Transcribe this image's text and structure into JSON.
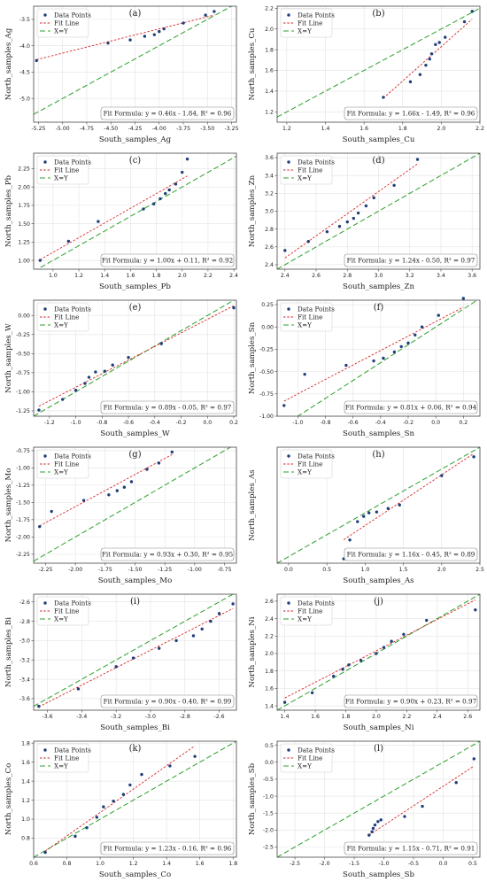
{
  "figure": {
    "legend": {
      "points": "Data Points",
      "fit": "Fit Line",
      "identity": "X=Y"
    },
    "colors": {
      "points": "#1f3f7a",
      "fit": "#d62728",
      "identity": "#2ca02c",
      "grid": "#e3e3e3",
      "axes": "#444444"
    }
  },
  "chart_data": [
    {
      "type": "scatter",
      "panel_label": "(a)",
      "xlabel": "South_samples_Ag",
      "ylabel": "North_samples_Ag",
      "xlim": [
        -5.3,
        -3.2
      ],
      "ylim": [
        -5.45,
        -3.25
      ],
      "xticks": [
        -5.25,
        -5.0,
        -4.75,
        -4.5,
        -4.25,
        -4.0,
        -3.75,
        -3.5,
        -3.25
      ],
      "xtick_labels": [
        "-5.25",
        "-5.00",
        "-4.75",
        "-4.50",
        "-4.25",
        "-4.00",
        "-3.75",
        "-3.50",
        "-3.25"
      ],
      "yticks": [
        -5.0,
        -4.5,
        -4.0,
        -3.5
      ],
      "ytick_labels": [
        "-5.0",
        "-4.5",
        "-4.0",
        "-3.5"
      ],
      "x": [
        -5.27,
        -4.53,
        -4.3,
        -4.15,
        -4.05,
        -4.0,
        -3.95,
        -3.75,
        -3.52,
        -3.43
      ],
      "y": [
        -4.28,
        -3.95,
        -3.89,
        -3.82,
        -3.79,
        -3.73,
        -3.68,
        -3.57,
        -3.42,
        -3.35
      ],
      "fit": {
        "slope": 0.46,
        "intercept": -1.84
      },
      "fit_formula": "Fit Formula: y = 0.46x - 1.84, R² = 0.96",
      "legend_position": "top-left",
      "fit_box_position": "bottom-right",
      "grid": true
    },
    {
      "type": "scatter",
      "panel_label": "(b)",
      "xlabel": "South_samples_Cu",
      "ylabel": "North_samples_Cu",
      "xlim": [
        1.15,
        2.2
      ],
      "ylim": [
        1.1,
        2.22
      ],
      "xticks": [
        1.2,
        1.4,
        1.6,
        1.8,
        2.0,
        2.2
      ],
      "xtick_labels": [
        "1.2",
        "1.4",
        "1.6",
        "1.8",
        "2.0",
        "2.2"
      ],
      "yticks": [
        1.2,
        1.4,
        1.6,
        1.8,
        2.0,
        2.2
      ],
      "ytick_labels": [
        "1.2",
        "1.4",
        "1.6",
        "1.8",
        "2.0",
        "2.2"
      ],
      "x": [
        1.7,
        1.84,
        1.89,
        1.92,
        1.94,
        1.95,
        1.97,
        1.99,
        2.02,
        2.12,
        2.16
      ],
      "y": [
        1.34,
        1.49,
        1.56,
        1.65,
        1.71,
        1.76,
        1.85,
        1.87,
        1.92,
        2.07,
        2.17
      ],
      "fit": {
        "slope": 1.66,
        "intercept": -1.49
      },
      "fit_formula": "Fit Formula: y = 1.66x - 1.49, R² = 0.96",
      "legend_position": "top-left",
      "fit_box_position": "bottom-right",
      "grid": true
    },
    {
      "type": "scatter",
      "panel_label": "(c)",
      "xlabel": "South_samples_Pb",
      "ylabel": "North_samples_Pb",
      "xlim": [
        0.85,
        2.42
      ],
      "ylim": [
        0.88,
        2.46
      ],
      "xticks": [
        1.0,
        1.2,
        1.4,
        1.6,
        1.8,
        2.0,
        2.2,
        2.4
      ],
      "xtick_labels": [
        "1.0",
        "1.2",
        "1.4",
        "1.6",
        "1.8",
        "2.0",
        "2.2",
        "2.4"
      ],
      "yticks": [
        1.0,
        1.25,
        1.5,
        1.75,
        2.0,
        2.25
      ],
      "ytick_labels": [
        "1.00",
        "1.25",
        "1.50",
        "1.75",
        "2.00",
        "2.25"
      ],
      "x": [
        0.9,
        1.12,
        1.35,
        1.7,
        1.78,
        1.83,
        1.87,
        1.9,
        1.95,
        2.0,
        2.04
      ],
      "y": [
        1.0,
        1.26,
        1.53,
        1.7,
        1.77,
        1.84,
        1.91,
        1.96,
        2.04,
        2.2,
        2.38
      ],
      "fit": {
        "slope": 1.0,
        "intercept": 0.11
      },
      "fit_formula": "Fit Formula: y = 1.00x + 0.11, R² = 0.92",
      "legend_position": "top-left",
      "fit_box_position": "bottom-right",
      "grid": true
    },
    {
      "type": "scatter",
      "panel_label": "(d)",
      "xlabel": "South_samples_Zn",
      "ylabel": "North_samples_Zn",
      "xlim": [
        2.35,
        3.65
      ],
      "ylim": [
        2.35,
        3.65
      ],
      "xticks": [
        2.4,
        2.6,
        2.8,
        3.0,
        3.2,
        3.4,
        3.6
      ],
      "xtick_labels": [
        "2.4",
        "2.6",
        "2.8",
        "3.0",
        "3.2",
        "3.4",
        "3.6"
      ],
      "yticks": [
        2.4,
        2.6,
        2.8,
        3.0,
        3.2,
        3.4,
        3.6
      ],
      "ytick_labels": [
        "2.4",
        "2.6",
        "2.8",
        "3.0",
        "3.2",
        "3.4",
        "3.6"
      ],
      "x": [
        2.4,
        2.55,
        2.67,
        2.75,
        2.8,
        2.84,
        2.87,
        2.92,
        2.97,
        3.1,
        3.25
      ],
      "y": [
        2.56,
        2.66,
        2.77,
        2.83,
        2.88,
        2.92,
        2.98,
        3.06,
        3.15,
        3.29,
        3.58
      ],
      "fit": {
        "slope": 1.24,
        "intercept": -0.5
      },
      "fit_formula": "Fit Formula: y = 1.24x - 0.50, R² = 0.97",
      "legend_position": "top-left",
      "fit_box_position": "bottom-right",
      "grid": true
    },
    {
      "type": "scatter",
      "panel_label": "(e)",
      "xlabel": "South_samples_W",
      "ylabel": "North_samples_W",
      "xlim": [
        -1.32,
        0.22
      ],
      "ylim": [
        -1.32,
        0.2
      ],
      "xticks": [
        -1.2,
        -1.0,
        -0.8,
        -0.6,
        -0.4,
        -0.2,
        0.0,
        0.2
      ],
      "xtick_labels": [
        "-1.2",
        "-1.0",
        "-0.8",
        "-0.6",
        "-0.4",
        "-0.2",
        "0.0",
        "0.2"
      ],
      "yticks": [
        -1.25,
        -1.0,
        -0.75,
        -0.5,
        -0.25,
        0.0
      ],
      "ytick_labels": [
        "-1.25",
        "-1.00",
        "-0.75",
        "-0.50",
        "-0.25",
        "0.00"
      ],
      "x": [
        -1.28,
        -1.1,
        -1.0,
        -0.93,
        -0.9,
        -0.85,
        -0.78,
        -0.72,
        -0.6,
        -0.35,
        0.2
      ],
      "y": [
        -1.24,
        -1.1,
        -0.98,
        -0.89,
        -0.81,
        -0.74,
        -0.73,
        -0.65,
        -0.55,
        -0.37,
        0.1
      ],
      "fit": {
        "slope": 0.89,
        "intercept": -0.05
      },
      "fit_formula": "Fit Formula: y = 0.89x - 0.05, R² = 0.97",
      "legend_position": "top-left",
      "fit_box_position": "bottom-right",
      "grid": true
    },
    {
      "type": "scatter",
      "panel_label": "(f)",
      "xlabel": "South_samples_Sn",
      "ylabel": "North_samples_Sn",
      "xlim": [
        -1.15,
        0.32
      ],
      "ylim": [
        -1.0,
        0.3
      ],
      "xticks": [
        -1.0,
        -0.8,
        -0.6,
        -0.4,
        -0.2,
        0.0,
        0.2
      ],
      "xtick_labels": [
        "-1.0",
        "-0.8",
        "-0.6",
        "-0.4",
        "-0.2",
        "0.0",
        "0.2"
      ],
      "yticks": [
        -1.0,
        -0.75,
        -0.5,
        -0.25,
        0.0,
        0.25
      ],
      "ytick_labels": [
        "-1.00",
        "-0.75",
        "-0.50",
        "-0.25",
        "0.00",
        "0.25"
      ],
      "x": [
        -1.1,
        -0.95,
        -0.65,
        -0.45,
        -0.38,
        -0.3,
        -0.25,
        -0.2,
        -0.15,
        -0.1,
        0.02,
        0.2
      ],
      "y": [
        -0.88,
        -0.53,
        -0.43,
        -0.38,
        -0.35,
        -0.28,
        -0.22,
        -0.18,
        -0.09,
        0.0,
        0.13,
        0.32
      ],
      "fit": {
        "slope": 0.81,
        "intercept": 0.06
      },
      "fit_formula": "Fit Formula: y = 0.81x + 0.06, R² = 0.94",
      "legend_position": "top-left",
      "fit_box_position": "bottom-right",
      "grid": true
    },
    {
      "type": "scatter",
      "panel_label": "(g)",
      "xlabel": "South_samples_Mo",
      "ylabel": "North_samples_Mo",
      "xlim": [
        -2.35,
        -0.65
      ],
      "ylim": [
        -2.38,
        -0.7
      ],
      "xticks": [
        -2.25,
        -2.0,
        -1.75,
        -1.5,
        -1.25,
        -1.0,
        -0.75
      ],
      "xtick_labels": [
        "-2.25",
        "-2.00",
        "-1.75",
        "-1.50",
        "-1.25",
        "-1.00",
        "-0.75"
      ],
      "yticks": [
        -2.25,
        -2.0,
        -1.75,
        -1.5,
        -1.25,
        -1.0,
        -0.75
      ],
      "ytick_labels": [
        "-2.25",
        "-2.00",
        "-1.75",
        "-1.50",
        "-1.25",
        "-1.00",
        "-0.75"
      ],
      "x": [
        -2.3,
        -2.2,
        -1.93,
        -1.72,
        -1.65,
        -1.59,
        -1.53,
        -1.4,
        -1.3,
        -1.19
      ],
      "y": [
        -1.85,
        -1.63,
        -1.47,
        -1.39,
        -1.33,
        -1.28,
        -1.2,
        -1.02,
        -0.93,
        -0.77
      ],
      "fit": {
        "slope": 0.93,
        "intercept": 0.3
      },
      "fit_formula": "Fit Formula: y = 0.93x + 0.30, R² = 0.95",
      "legend_position": "top-left",
      "fit_box_position": "bottom-right",
      "grid": true
    },
    {
      "type": "scatter",
      "panel_label": "(h)",
      "xlabel": "South_samples_As",
      "ylabel": "North_samples_As",
      "xlim": [
        -0.15,
        2.5
      ],
      "ylim": [
        -0.15,
        2.5
      ],
      "xticks": [
        0.0,
        0.5,
        1.0,
        1.5,
        2.0,
        2.5
      ],
      "xtick_labels": [
        "0.0",
        "0.5",
        "1.0",
        "1.5",
        "2.0",
        "2.5"
      ],
      "yticks": [],
      "ytick_labels": [],
      "x": [
        0.72,
        0.8,
        0.9,
        0.98,
        1.05,
        1.15,
        1.3,
        1.45,
        2.0,
        2.42
      ],
      "y": [
        -0.05,
        0.38,
        0.8,
        0.92,
        1.0,
        1.02,
        1.1,
        1.18,
        1.85,
        2.28
      ],
      "fit": {
        "slope": 1.16,
        "intercept": -0.45
      },
      "fit_formula": "Fit Formula: y = 1.16x - 0.45, R² = 0.89",
      "legend_position": "top-left",
      "fit_box_position": "bottom-right",
      "grid": true
    },
    {
      "type": "scatter",
      "panel_label": "(i)",
      "xlabel": "South_samples_Bi",
      "ylabel": "North_samples_Bi",
      "xlim": [
        -3.68,
        -2.5
      ],
      "ylim": [
        -3.72,
        -2.52
      ],
      "xticks": [
        -3.6,
        -3.4,
        -3.2,
        -3.0,
        -2.8,
        -2.6
      ],
      "xtick_labels": [
        "-3.6",
        "-3.4",
        "-3.2",
        "-3.0",
        "-2.8",
        "-2.6"
      ],
      "yticks": [
        -3.6,
        -3.4,
        -3.2,
        -3.0,
        -2.8,
        -2.6
      ],
      "ytick_labels": [
        "-3.6",
        "-3.4",
        "-3.2",
        "-3.0",
        "-2.8",
        "-2.6"
      ],
      "x": [
        -3.65,
        -3.42,
        -3.2,
        -3.1,
        -2.95,
        -2.85,
        -2.75,
        -2.7,
        -2.65,
        -2.6,
        -2.52
      ],
      "y": [
        -3.68,
        -3.5,
        -3.27,
        -3.18,
        -3.08,
        -3.0,
        -2.95,
        -2.88,
        -2.8,
        -2.72,
        -2.62
      ],
      "fit": {
        "slope": 0.9,
        "intercept": -0.4
      },
      "fit_formula": "Fit Formula: y = 0.90x - 0.40, R² = 0.99",
      "legend_position": "top-left",
      "fit_box_position": "bottom-right",
      "grid": true
    },
    {
      "type": "scatter",
      "panel_label": "(j)",
      "xlabel": "South_samples_Ni",
      "ylabel": "North_samples_Ni",
      "xlim": [
        1.35,
        2.68
      ],
      "ylim": [
        1.35,
        2.68
      ],
      "xticks": [
        1.4,
        1.6,
        1.8,
        2.0,
        2.2,
        2.4,
        2.6
      ],
      "xtick_labels": [
        "1.4",
        "1.6",
        "1.8",
        "2.0",
        "2.2",
        "2.4",
        "2.6"
      ],
      "yticks": [
        1.4,
        1.6,
        1.8,
        2.0,
        2.2,
        2.4,
        2.6
      ],
      "ytick_labels": [
        "1.4",
        "1.6",
        "1.8",
        "2.0",
        "2.2",
        "2.4",
        "2.6"
      ],
      "x": [
        1.4,
        1.58,
        1.72,
        1.78,
        1.82,
        1.9,
        2.0,
        2.05,
        2.1,
        2.18,
        2.33,
        2.65
      ],
      "y": [
        1.44,
        1.55,
        1.74,
        1.82,
        1.87,
        1.92,
        2.0,
        2.07,
        2.14,
        2.22,
        2.38,
        2.5
      ],
      "fit": {
        "slope": 0.9,
        "intercept": 0.23
      },
      "fit_formula": "Fit Formula: y = 0.90x + 0.23, R² = 0.97",
      "legend_position": "top-left",
      "fit_box_position": "bottom-right",
      "grid": true
    },
    {
      "type": "scatter",
      "panel_label": "(k)",
      "xlabel": "South_samples_Co",
      "ylabel": "North_samples_Co",
      "xlim": [
        0.6,
        1.82
      ],
      "ylim": [
        0.6,
        1.82
      ],
      "xticks": [
        0.6,
        0.8,
        1.0,
        1.2,
        1.4,
        1.6,
        1.8
      ],
      "xtick_labels": [
        "0.6",
        "0.8",
        "1.0",
        "1.2",
        "1.4",
        "1.6",
        "1.8"
      ],
      "yticks": [
        0.8,
        1.0,
        1.2,
        1.4,
        1.6,
        1.8
      ],
      "ytick_labels": [
        "0.8",
        "1.0",
        "1.2",
        "1.4",
        "1.6",
        "1.8"
      ],
      "x": [
        0.67,
        0.85,
        0.92,
        0.98,
        1.02,
        1.08,
        1.14,
        1.18,
        1.25,
        1.42,
        1.57
      ],
      "y": [
        0.65,
        0.82,
        0.91,
        1.02,
        1.13,
        1.19,
        1.26,
        1.36,
        1.47,
        1.56,
        1.66
      ],
      "fit": {
        "slope": 1.23,
        "intercept": -0.16
      },
      "fit_formula": "Fit Formula: y = 1.23x - 0.16, R² = 0.96",
      "legend_position": "top-left",
      "fit_box_position": "bottom-right",
      "grid": true
    },
    {
      "type": "scatter",
      "panel_label": "(l)",
      "xlabel": "South_samples_Sb",
      "ylabel": "North_samples_Sb",
      "xlim": [
        -2.8,
        0.62
      ],
      "ylim": [
        -2.8,
        0.62
      ],
      "xticks": [
        -2.5,
        -2.0,
        -1.5,
        -1.0,
        -0.5,
        0.0,
        0.5
      ],
      "xtick_labels": [
        "-2.5",
        "-2.0",
        "-1.5",
        "-1.0",
        "-0.5",
        "0.0",
        "0.5"
      ],
      "yticks": [
        -2.5,
        -2.0,
        -1.5,
        -1.0,
        -0.5,
        0.0,
        0.5
      ],
      "ytick_labels": [
        "-2.5",
        "-2.0",
        "-1.5",
        "-1.0",
        "-0.5",
        "0.0",
        "0.5"
      ],
      "x": [
        -1.25,
        -1.2,
        -1.18,
        -1.15,
        -1.1,
        -1.05,
        -0.65,
        -0.35,
        0.22,
        0.52
      ],
      "y": [
        -2.15,
        -2.05,
        -1.95,
        -1.85,
        -1.75,
        -1.7,
        -1.6,
        -1.3,
        -0.6,
        0.1
      ],
      "fit": {
        "slope": 1.15,
        "intercept": -0.71
      },
      "fit_formula": "Fit Formula: y = 1.15x - 0.71, R² = 0.91",
      "legend_position": "top-left",
      "fit_box_position": "bottom-right",
      "grid": true
    }
  ]
}
